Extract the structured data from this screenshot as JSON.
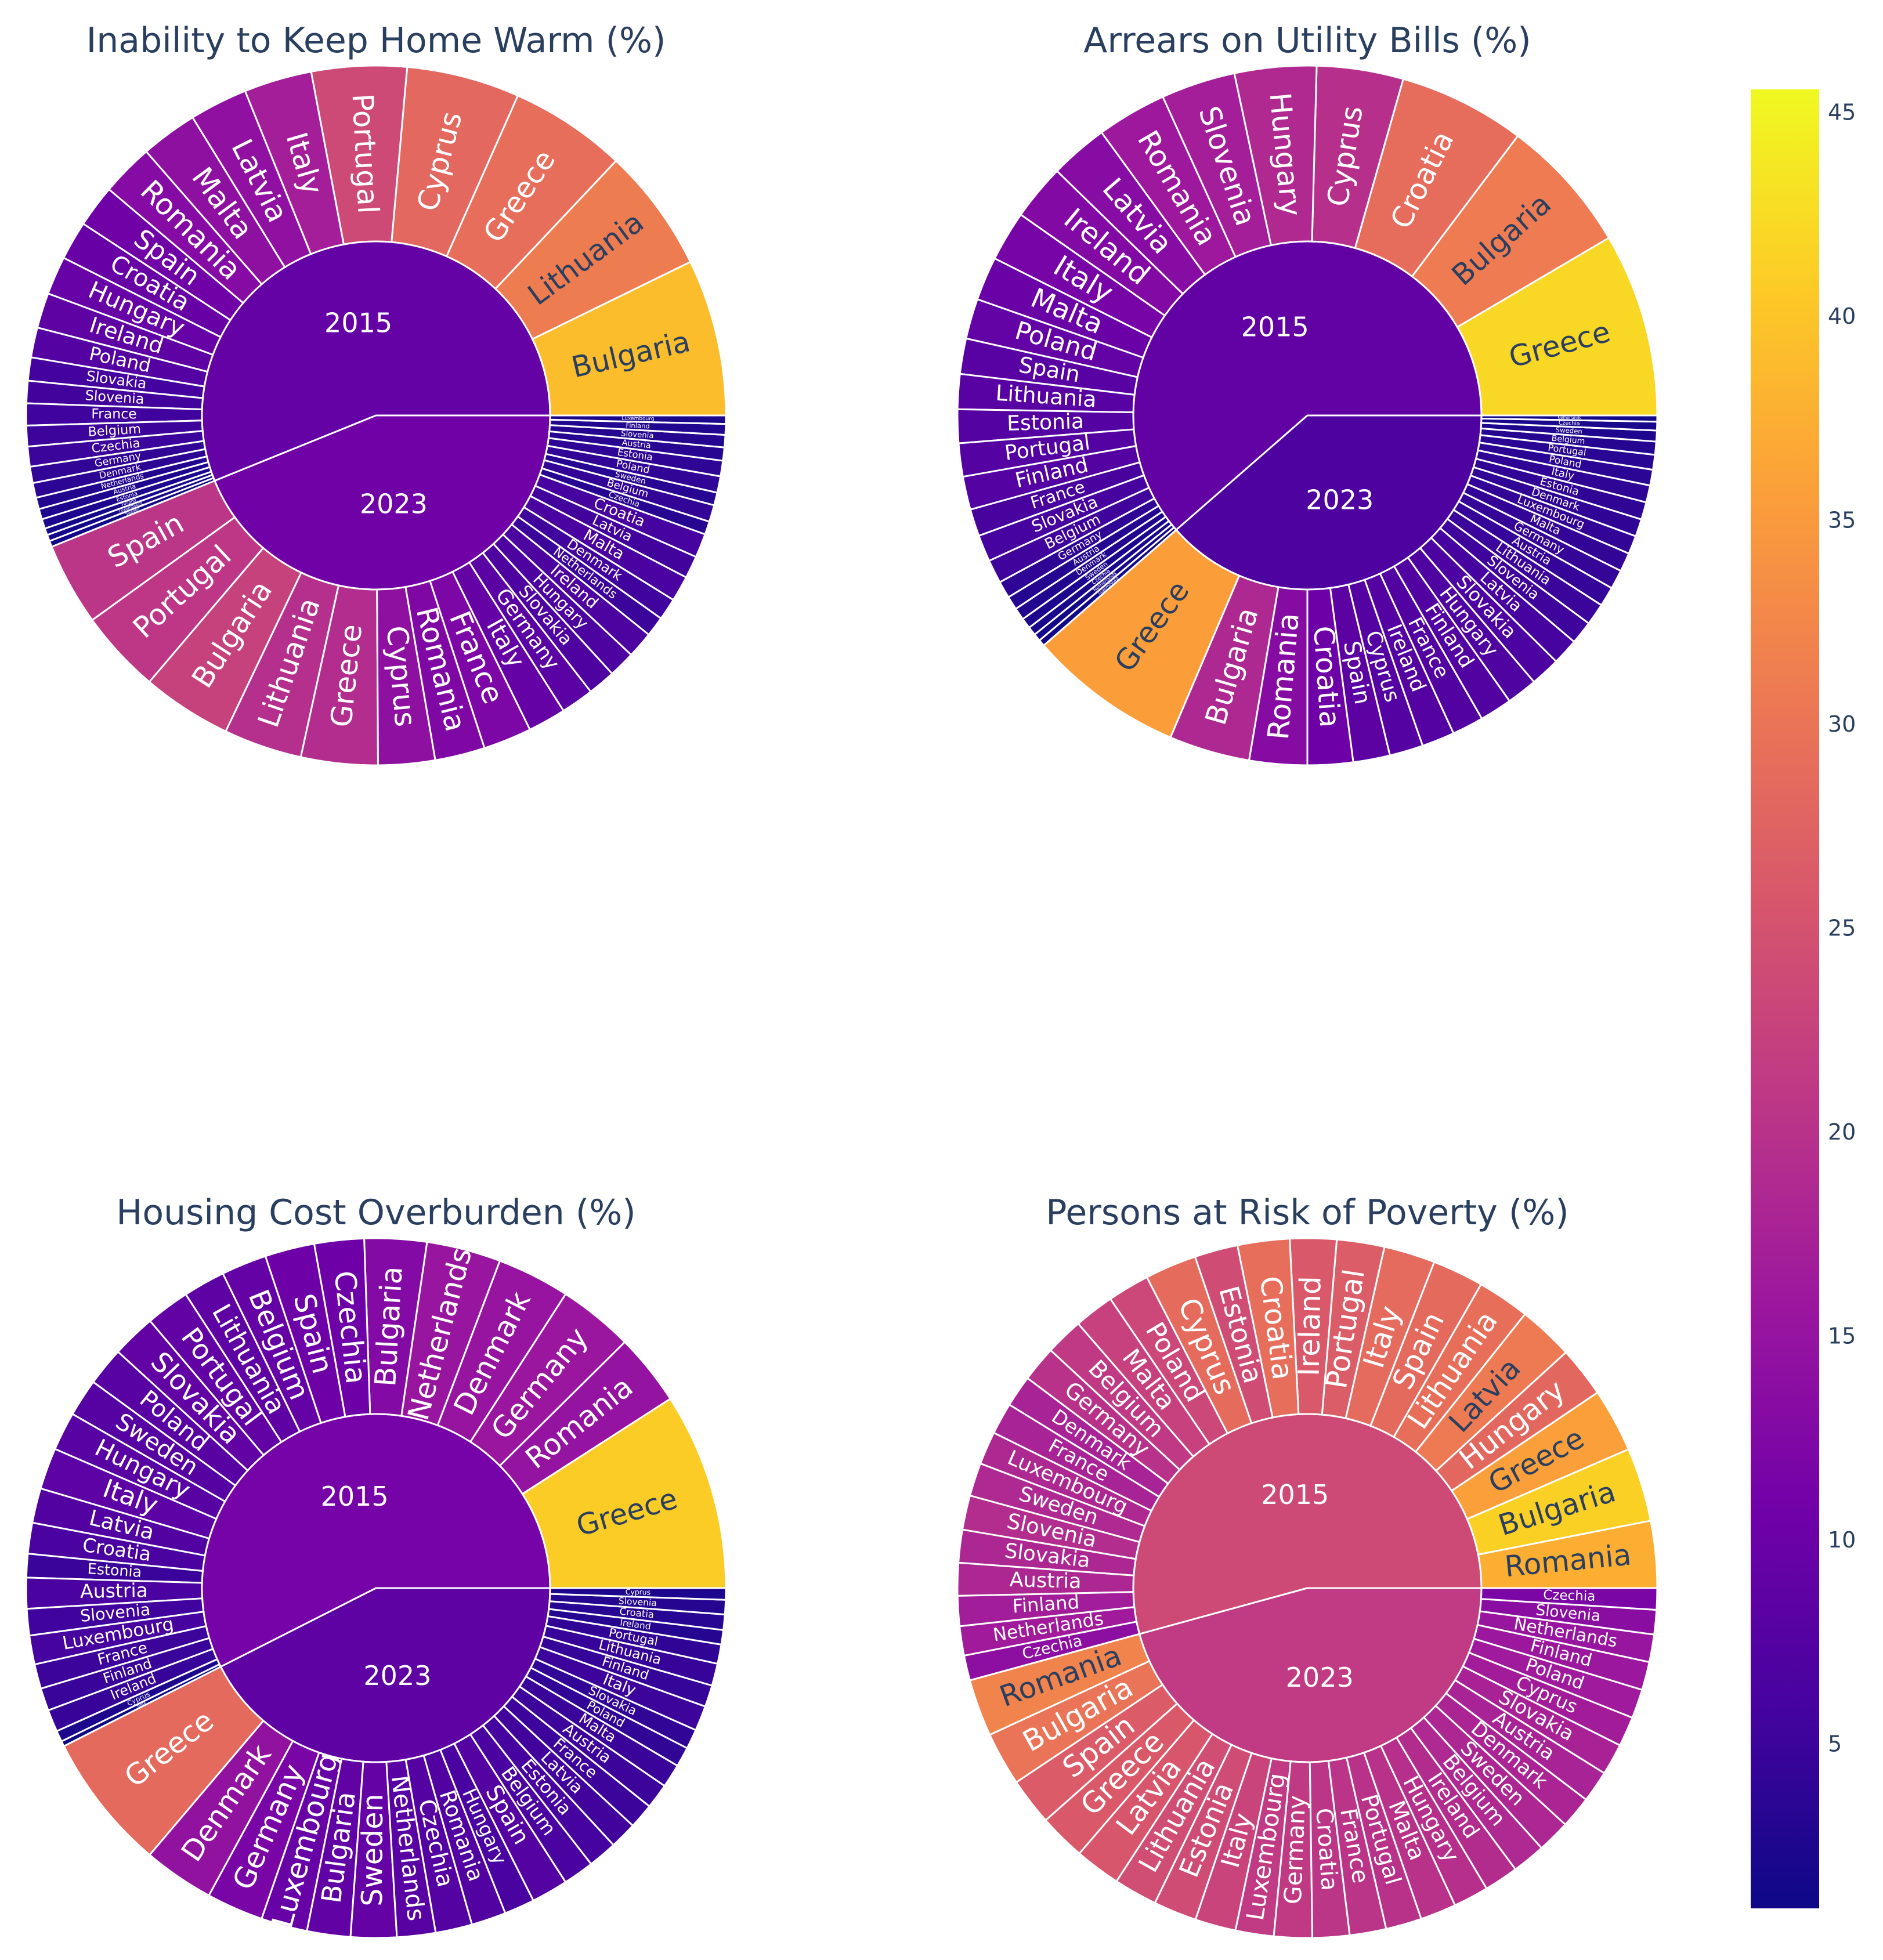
{
  "chart_data": [
    {
      "type": "sunburst",
      "title": "Inability to Keep Home Warm (%)",
      "years": [
        {
          "year": "2015",
          "value": 9.4,
          "countries": [
            "Bulgaria",
            "Lithuania",
            "Greece",
            "Cyprus",
            "Portugal",
            "Italy",
            "Latvia",
            "Malta",
            "Romania",
            "Spain",
            "Croatia",
            "Hungary",
            "Ireland",
            "Poland",
            "Slovakia",
            "Slovenia",
            "France",
            "Belgium",
            "Czechia",
            "Germany",
            "Denmark",
            "Netherlands",
            "Austria",
            "Estonia",
            "Finland",
            "Luxembourg",
            "Sweden"
          ],
          "values": [
            39.2,
            31.1,
            29.2,
            28.3,
            23.8,
            17.0,
            14.5,
            14.2,
            13.1,
            10.6,
            9.7,
            9.6,
            8.8,
            7.5,
            5.8,
            5.6,
            5.5,
            5.2,
            5.0,
            4.1,
            3.7,
            2.9,
            2.6,
            2.4,
            1.7,
            1.6,
            1.5
          ]
        },
        {
          "year": "2023",
          "value": 10.6,
          "countries": [
            "Spain",
            "Portugal",
            "Bulgaria",
            "Lithuania",
            "Greece",
            "Cyprus",
            "Romania",
            "France",
            "Italy",
            "Germany",
            "Slovakia",
            "Hungary",
            "Ireland",
            "Netherlands",
            "Denmark",
            "Malta",
            "Latvia",
            "Croatia",
            "Czechia",
            "Belgium",
            "Sweden",
            "Poland",
            "Estonia",
            "Austria",
            "Slovenia",
            "Finland",
            "Luxembourg"
          ],
          "values": [
            20.7,
            20.8,
            22.5,
            19.6,
            19.2,
            14.2,
            12.5,
            12.1,
            9.5,
            8.2,
            6.9,
            6.6,
            6.6,
            5.0,
            5.5,
            6.4,
            5.6,
            6.0,
            3.3,
            4.2,
            3.2,
            4.1,
            3.9,
            3.3,
            3.1,
            2.7,
            2.1
          ]
        }
      ]
    },
    {
      "type": "sunburst",
      "title": "Arrears on Utility Bills (%)",
      "years": [
        {
          "year": "2015",
          "value": 9.1,
          "countries": [
            "Greece",
            "Bulgaria",
            "Croatia",
            "Cyprus",
            "Hungary",
            "Slovenia",
            "Romania",
            "Latvia",
            "Ireland",
            "Italy",
            "Malta",
            "Poland",
            "Spain",
            "Lithuania",
            "Estonia",
            "Portugal",
            "Finland",
            "France",
            "Slovakia",
            "Belgium",
            "Germany",
            "Austria",
            "Denmark",
            "Sweden",
            "Czechia",
            "Netherlands",
            "Luxembourg"
          ],
          "values": [
            42.0,
            31.0,
            29.0,
            19.8,
            18.7,
            17.0,
            16.0,
            13.3,
            12.8,
            11.5,
            10.0,
            9.2,
            8.1,
            8.0,
            7.7,
            7.6,
            7.6,
            6.2,
            6.1,
            5.4,
            3.9,
            3.1,
            2.8,
            2.4,
            2.0,
            1.7,
            1.5
          ]
        },
        {
          "year": "2023",
          "value": 6.9,
          "countries": [
            "Greece",
            "Bulgaria",
            "Romania",
            "Croatia",
            "Spain",
            "Cyprus",
            "Ireland",
            "France",
            "Finland",
            "Hungary",
            "Slovakia",
            "Latvia",
            "Slovenia",
            "Lithuania",
            "Austria",
            "Germany",
            "Malta",
            "Luxembourg",
            "Denmark",
            "Estonia",
            "Italy",
            "Poland",
            "Portugal",
            "Belgium",
            "Sweden",
            "Czechia",
            "Netherlands"
          ],
          "values": [
            35.6,
            18.5,
            13.2,
            10.4,
            8.4,
            7.7,
            7.5,
            7.2,
            7.4,
            7.0,
            6.8,
            6.0,
            5.3,
            5.0,
            4.5,
            4.4,
            4.3,
            4.2,
            4.0,
            4.0,
            3.9,
            3.6,
            3.4,
            3.0,
            2.5,
            2.0,
            1.4
          ]
        }
      ]
    },
    {
      "type": "sunburst",
      "title": "Housing Cost Overburden (%)",
      "years": [
        {
          "year": "2015",
          "value": 11.3,
          "countries": [
            "Greece",
            "Romania",
            "Germany",
            "Denmark",
            "Netherlands",
            "Bulgaria",
            "Czechia",
            "Spain",
            "Belgium",
            "Lithuania",
            "Portugal",
            "Slovakia",
            "Poland",
            "Sweden",
            "Hungary",
            "Italy",
            "Latvia",
            "Croatia",
            "Estonia",
            "Austria",
            "Slovenia",
            "Luxembourg",
            "France",
            "Finland",
            "Ireland",
            "Cyprus",
            "Malta"
          ],
          "values": [
            40.9,
            14.9,
            15.6,
            15.1,
            15.4,
            12.9,
            10.3,
            10.3,
            9.4,
            8.7,
            9.1,
            9.1,
            8.0,
            7.8,
            8.0,
            8.6,
            7.2,
            6.4,
            4.9,
            6.4,
            5.5,
            6.0,
            5.1,
            4.7,
            4.6,
            2.3,
            1.1
          ]
        },
        {
          "year": "2023",
          "value": 8.8,
          "countries": [
            "Greece",
            "Denmark",
            "Germany",
            "Luxembourg",
            "Bulgaria",
            "Sweden",
            "Netherlands",
            "Czechia",
            "Romania",
            "Hungary",
            "Spain",
            "Belgium",
            "Estonia",
            "Latvia",
            "France",
            "Austria",
            "Malta",
            "Poland",
            "Slovakia",
            "Italy",
            "Finland",
            "Lithuania",
            "Portugal",
            "Ireland",
            "Croatia",
            "Slovenia",
            "Cyprus"
          ],
          "values": [
            28.5,
            14.7,
            11.8,
            9.6,
            9.0,
            9.5,
            8.0,
            7.6,
            7.2,
            6.3,
            7.6,
            6.4,
            6.0,
            5.6,
            5.2,
            5.2,
            4.9,
            4.1,
            4.1,
            5.2,
            4.5,
            4.6,
            4.0,
            3.0,
            3.2,
            3.0,
            2.4
          ]
        }
      ]
    },
    {
      "type": "sunburst",
      "title": "Persons at Risk of Poverty (%)",
      "years": [
        {
          "year": "2015",
          "value": 23.7,
          "countries": [
            "Romania",
            "Bulgaria",
            "Greece",
            "Hungary",
            "Latvia",
            "Lithuania",
            "Spain",
            "Italy",
            "Portugal",
            "Ireland",
            "Croatia",
            "Estonia",
            "Cyprus",
            "Poland",
            "Malta",
            "Belgium",
            "Germany",
            "Denmark",
            "France",
            "Luxembourg",
            "Sweden",
            "Slovenia",
            "Slovakia",
            "Austria",
            "Finland",
            "Netherlands",
            "Czechia"
          ],
          "values": [
            37.4,
            41.3,
            35.7,
            28.2,
            30.9,
            29.3,
            28.6,
            28.7,
            26.6,
            26.0,
            29.1,
            24.2,
            28.9,
            23.4,
            22.4,
            21.1,
            20.0,
            17.7,
            17.7,
            18.5,
            18.6,
            19.2,
            18.4,
            18.3,
            16.8,
            16.4,
            14.0
          ]
        },
        {
          "year": "2023",
          "value": 21.4,
          "countries": [
            "Romania",
            "Bulgaria",
            "Spain",
            "Greece",
            "Latvia",
            "Lithuania",
            "Estonia",
            "Italy",
            "Luxembourg",
            "Germany",
            "Croatia",
            "France",
            "Portugal",
            "Malta",
            "Hungary",
            "Ireland",
            "Belgium",
            "Sweden",
            "Denmark",
            "Austria",
            "Slovakia",
            "Cyprus",
            "Poland",
            "Finland",
            "Netherlands",
            "Slovenia",
            "Czechia"
          ],
          "values": [
            32.0,
            30.0,
            26.5,
            26.1,
            25.6,
            24.3,
            24.2,
            22.8,
            21.4,
            21.3,
            20.7,
            20.4,
            20.1,
            20.1,
            19.7,
            19.1,
            18.6,
            18.4,
            17.9,
            17.7,
            17.6,
            16.7,
            16.3,
            15.8,
            15.4,
            13.7,
            12.0
          ]
        }
      ]
    }
  ],
  "colorscale": {
    "name": "Plasma",
    "min": 1.0,
    "max": 45.6,
    "ticks": [
      "5",
      "10",
      "15",
      "20",
      "25",
      "30",
      "35",
      "40",
      "45"
    ],
    "stops": [
      "#0d0887",
      "#46039f",
      "#7201a8",
      "#9c179e",
      "#bd3786",
      "#d8576b",
      "#ed7953",
      "#fb9f3a",
      "#fdca26",
      "#f0f921"
    ]
  }
}
